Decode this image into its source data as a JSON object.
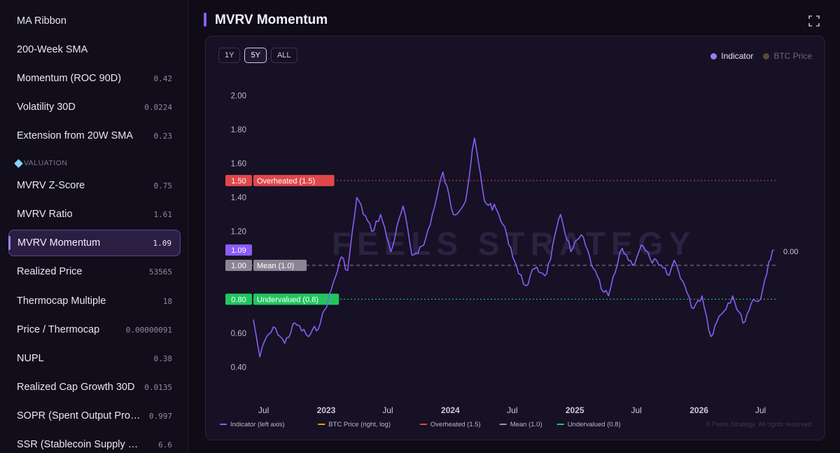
{
  "sidebar": {
    "items": [
      {
        "label": "MA Ribbon",
        "value": ""
      },
      {
        "label": "200-Week SMA",
        "value": ""
      },
      {
        "label": "Momentum (ROC 90D)",
        "value": "0.42"
      },
      {
        "label": "Volatility 30D",
        "value": "0.0224"
      },
      {
        "label": "Extension from 20W SMA",
        "value": "0.23"
      },
      {
        "label": "MVRV Z-Score",
        "value": "0.75"
      },
      {
        "label": "MVRV Ratio",
        "value": "1.61"
      },
      {
        "label": "MVRV Momentum",
        "value": "1.09",
        "active": true
      },
      {
        "label": "Realized Price",
        "value": "53565"
      },
      {
        "label": "Thermocap Multiple",
        "value": "18"
      },
      {
        "label": "Price / Thermocap",
        "value": "0.00000091"
      },
      {
        "label": "NUPL",
        "value": "0.38"
      },
      {
        "label": "Realized Cap Growth 30D",
        "value": "0.0135"
      },
      {
        "label": "SOPR (Spent Output Profit ...",
        "value": "0.997"
      },
      {
        "label": "SSR (Stablecoin Supply Ratio)",
        "value": "6.6"
      }
    ],
    "section_label": "VALUATION",
    "section_icon": "gem-icon"
  },
  "header": {
    "title": "MVRV Momentum",
    "expand_icon": "expand-icon"
  },
  "ranges": [
    {
      "label": "1Y",
      "active": false
    },
    {
      "label": "5Y",
      "active": true
    },
    {
      "label": "ALL",
      "active": false
    }
  ],
  "legend_top": [
    {
      "label": "Indicator",
      "color": "#9b7bff",
      "active": true
    },
    {
      "label": "BTC Price",
      "color": "#5a4a35",
      "active": false
    }
  ],
  "watermark": "FEELS STRATEGY",
  "copyright": "© Feels Strategy. All rights reserved",
  "colors": {
    "indicator": "#8b5cf6",
    "overheated": "#e0474b",
    "mean": "#8a8593",
    "undervalued": "#22c55e",
    "btc": "#f59e0b"
  },
  "chart_data": {
    "type": "line",
    "title": "MVRV Momentum",
    "y_ticks": [
      "0.40",
      "0.60",
      "0.80",
      "1.00",
      "1.20",
      "1.40",
      "1.60",
      "1.80",
      "2.00"
    ],
    "ylim": [
      0.36,
      2.04
    ],
    "x_ticks": [
      "Jul",
      "2023",
      "Jul",
      "2024",
      "Jul",
      "2025",
      "Jul",
      "2026",
      "Jul"
    ],
    "right_axis_label": "0.00",
    "current_value_label": "1.09",
    "reference_lines": [
      {
        "value": 1.5,
        "value_label": "1.50",
        "label": "Overheated (1.5)",
        "color": "#e0474b",
        "style": "dotted"
      },
      {
        "value": 1.0,
        "value_label": "1.00",
        "label": "Mean (1.0)",
        "color": "#8a8593",
        "style": "dashed"
      },
      {
        "value": 0.8,
        "value_label": "0.80",
        "label": "Undervalued (0.8)",
        "color": "#22c55e",
        "style": "dotted"
      }
    ],
    "series": [
      {
        "name": "Indicator (left axis)",
        "color": "#8b5cf6",
        "x": [
          "2022-06-01",
          "2022-06-20",
          "2022-07-10",
          "2022-08-05",
          "2022-09-01",
          "2022-10-01",
          "2022-11-10",
          "2022-12-15",
          "2023-01-15",
          "2023-02-15",
          "2023-03-05",
          "2023-04-01",
          "2023-05-15",
          "2023-06-10",
          "2023-07-10",
          "2023-08-15",
          "2023-09-10",
          "2023-10-15",
          "2023-11-15",
          "2023-12-10",
          "2024-01-10",
          "2024-02-15",
          "2024-03-12",
          "2024-04-10",
          "2024-05-15",
          "2024-06-15",
          "2024-07-20",
          "2024-08-10",
          "2024-09-05",
          "2024-10-10",
          "2024-11-20",
          "2024-12-20",
          "2025-01-20",
          "2025-02-25",
          "2025-03-20",
          "2025-04-10",
          "2025-05-20",
          "2025-06-20",
          "2025-07-15",
          "2025-08-10",
          "2025-09-05",
          "2025-10-05",
          "2025-10-20",
          "2025-11-20",
          "2025-12-10",
          "2026-01-10",
          "2026-02-05",
          "2026-03-01",
          "2026-04-10",
          "2026-05-10",
          "2026-06-10",
          "2026-07-01",
          "2026-07-25",
          "2026-08-10"
        ],
        "values": [
          0.68,
          0.46,
          0.58,
          0.63,
          0.54,
          0.66,
          0.58,
          0.66,
          0.85,
          1.05,
          0.97,
          1.4,
          1.2,
          1.3,
          1.08,
          1.35,
          1.06,
          1.12,
          1.34,
          1.55,
          1.3,
          1.38,
          1.75,
          1.38,
          1.33,
          1.18,
          0.95,
          0.88,
          0.98,
          0.95,
          1.3,
          1.08,
          1.18,
          0.98,
          0.86,
          0.82,
          1.1,
          1.0,
          1.12,
          1.04,
          1.0,
          0.94,
          1.03,
          0.88,
          0.75,
          0.82,
          0.58,
          0.7,
          0.82,
          0.66,
          0.8,
          0.8,
          1.02,
          1.09
        ]
      },
      {
        "name": "BTC Price (right, log)",
        "color": "#f59e0b",
        "x": [],
        "values": []
      },
      {
        "name": "Overheated (1.5)",
        "color": "#e0474b",
        "x": [],
        "values": []
      },
      {
        "name": "Mean (1.0)",
        "color": "#9a94a6",
        "x": [],
        "values": []
      },
      {
        "name": "Undervalued (0.8)",
        "color": "#22c55e",
        "x": [],
        "values": []
      }
    ]
  }
}
